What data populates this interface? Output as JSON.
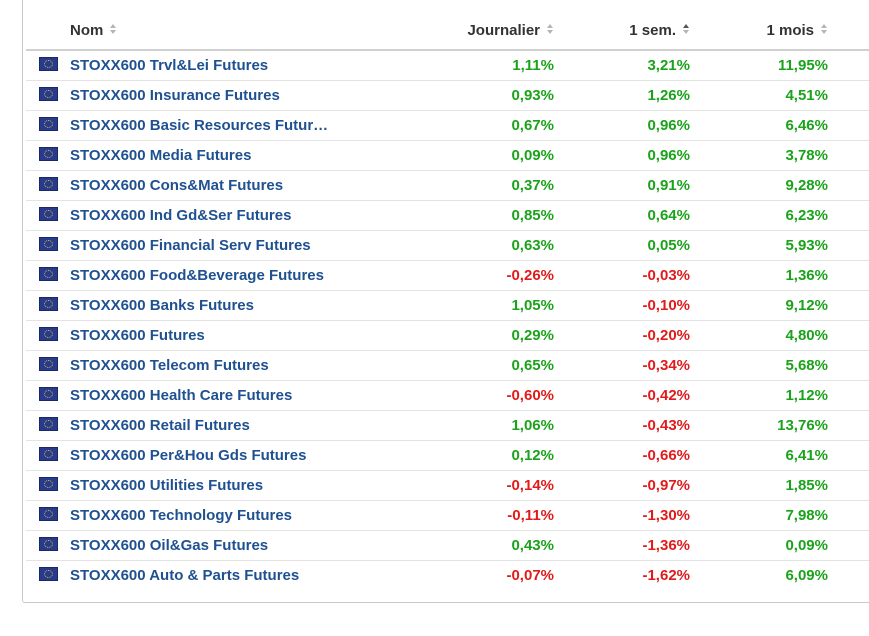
{
  "table": {
    "headers": {
      "name": "Nom",
      "daily": "Journalier",
      "week": "1 sem.",
      "month": "1 mois"
    },
    "sort": {
      "column": "week",
      "direction": "desc"
    },
    "colors": {
      "link": "#1f5191",
      "positive": "#1aa31a",
      "negative": "#e01b1b"
    },
    "rows": [
      {
        "name": "STOXX600 Trvl&Lei Futures",
        "daily": "1,11%",
        "week": "3,21%",
        "month": "11,95%",
        "daily_sign": "pos",
        "week_sign": "pos",
        "month_sign": "pos"
      },
      {
        "name": "STOXX600 Insurance Futures",
        "daily": "0,93%",
        "week": "1,26%",
        "month": "4,51%",
        "daily_sign": "pos",
        "week_sign": "pos",
        "month_sign": "pos"
      },
      {
        "name": "STOXX600 Basic Resources Futur…",
        "daily": "0,67%",
        "week": "0,96%",
        "month": "6,46%",
        "daily_sign": "pos",
        "week_sign": "pos",
        "month_sign": "pos"
      },
      {
        "name": "STOXX600 Media Futures",
        "daily": "0,09%",
        "week": "0,96%",
        "month": "3,78%",
        "daily_sign": "pos",
        "week_sign": "pos",
        "month_sign": "pos"
      },
      {
        "name": "STOXX600 Cons&Mat Futures",
        "daily": "0,37%",
        "week": "0,91%",
        "month": "9,28%",
        "daily_sign": "pos",
        "week_sign": "pos",
        "month_sign": "pos"
      },
      {
        "name": "STOXX600 Ind Gd&Ser Futures",
        "daily": "0,85%",
        "week": "0,64%",
        "month": "6,23%",
        "daily_sign": "pos",
        "week_sign": "pos",
        "month_sign": "pos"
      },
      {
        "name": "STOXX600 Financial Serv Futures",
        "daily": "0,63%",
        "week": "0,05%",
        "month": "5,93%",
        "daily_sign": "pos",
        "week_sign": "pos",
        "month_sign": "pos"
      },
      {
        "name": "STOXX600 Food&Beverage Futures",
        "daily": "-0,26%",
        "week": "-0,03%",
        "month": "1,36%",
        "daily_sign": "neg",
        "week_sign": "neg",
        "month_sign": "pos"
      },
      {
        "name": "STOXX600 Banks Futures",
        "daily": "1,05%",
        "week": "-0,10%",
        "month": "9,12%",
        "daily_sign": "pos",
        "week_sign": "neg",
        "month_sign": "pos"
      },
      {
        "name": "STOXX600 Futures",
        "daily": "0,29%",
        "week": "-0,20%",
        "month": "4,80%",
        "daily_sign": "pos",
        "week_sign": "neg",
        "month_sign": "pos"
      },
      {
        "name": "STOXX600 Telecom Futures",
        "daily": "0,65%",
        "week": "-0,34%",
        "month": "5,68%",
        "daily_sign": "pos",
        "week_sign": "neg",
        "month_sign": "pos"
      },
      {
        "name": "STOXX600 Health Care Futures",
        "daily": "-0,60%",
        "week": "-0,42%",
        "month": "1,12%",
        "daily_sign": "neg",
        "week_sign": "neg",
        "month_sign": "pos"
      },
      {
        "name": "STOXX600 Retail Futures",
        "daily": "1,06%",
        "week": "-0,43%",
        "month": "13,76%",
        "daily_sign": "pos",
        "week_sign": "neg",
        "month_sign": "pos"
      },
      {
        "name": "STOXX600 Per&Hou Gds Futures",
        "daily": "0,12%",
        "week": "-0,66%",
        "month": "6,41%",
        "daily_sign": "pos",
        "week_sign": "neg",
        "month_sign": "pos"
      },
      {
        "name": "STOXX600 Utilities Futures",
        "daily": "-0,14%",
        "week": "-0,97%",
        "month": "1,85%",
        "daily_sign": "neg",
        "week_sign": "neg",
        "month_sign": "pos"
      },
      {
        "name": "STOXX600 Technology Futures",
        "daily": "-0,11%",
        "week": "-1,30%",
        "month": "7,98%",
        "daily_sign": "neg",
        "week_sign": "neg",
        "month_sign": "pos"
      },
      {
        "name": "STOXX600 Oil&Gas Futures",
        "daily": "0,43%",
        "week": "-1,36%",
        "month": "0,09%",
        "daily_sign": "pos",
        "week_sign": "neg",
        "month_sign": "pos"
      },
      {
        "name": "STOXX600 Auto & Parts Futures",
        "daily": "-0,07%",
        "week": "-1,62%",
        "month": "6,09%",
        "daily_sign": "neg",
        "week_sign": "neg",
        "month_sign": "pos"
      }
    ]
  }
}
